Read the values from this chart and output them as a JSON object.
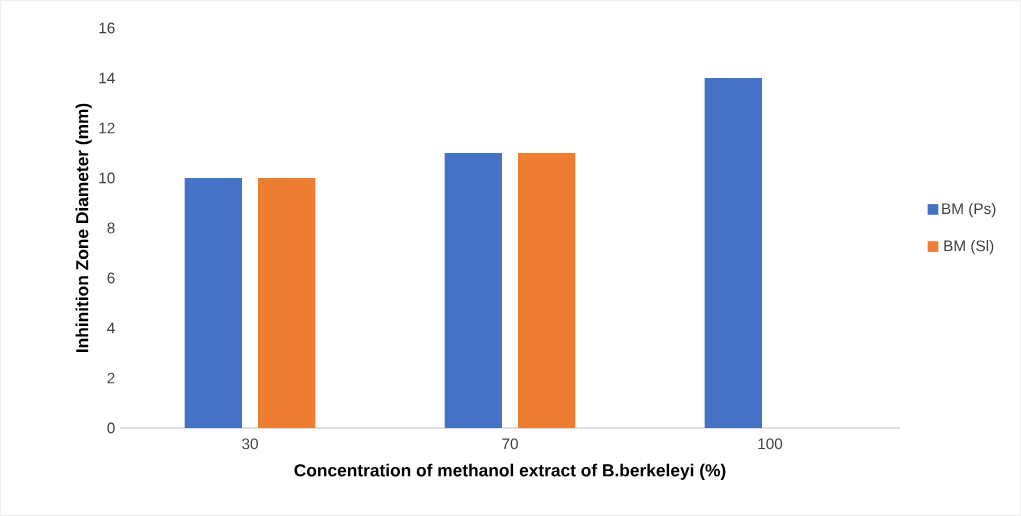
{
  "chart_data": {
    "type": "bar",
    "xlabel": "Concentration of methanol extract of B.berkeleyi (%)",
    "ylabel": "Inhinition Zone Diameter (mm)",
    "categories": [
      "30",
      "70",
      "100"
    ],
    "series": [
      {
        "name": "BM (Ps)",
        "color": "#4472c4",
        "values": [
          10,
          11,
          14
        ]
      },
      {
        "name": "BM (Sl)",
        "color": "#ed7d31",
        "values": [
          10,
          11,
          null
        ]
      }
    ],
    "ylim": [
      0,
      16
    ],
    "yticks": [
      0,
      2,
      4,
      6,
      8,
      10,
      12,
      14,
      16
    ],
    "grid": false,
    "legend": "right"
  }
}
